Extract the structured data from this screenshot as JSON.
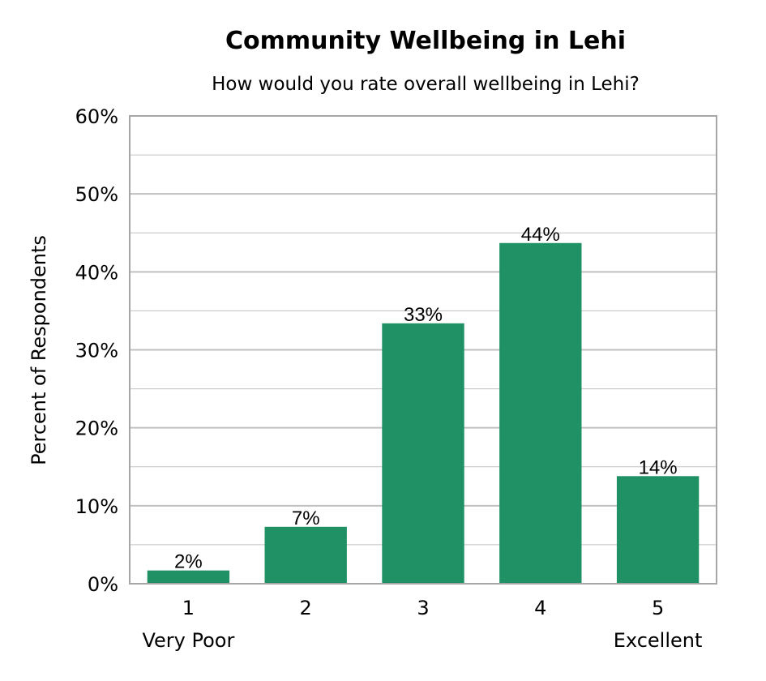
{
  "chart_data": {
    "type": "bar",
    "title": "Community Wellbeing in Lehi",
    "subtitle": "How would you rate overall wellbeing in Lehi?",
    "xlabel": "",
    "ylabel": "Percent of Respondents",
    "categories": [
      "1",
      "2",
      "3",
      "4",
      "5"
    ],
    "category_sublabels": [
      "Very Poor",
      "",
      "",
      "",
      "Excellent"
    ],
    "values": [
      1.7,
      7.3,
      33.4,
      43.7,
      13.8
    ],
    "data_labels": [
      "2%",
      "7%",
      "33%",
      "44%",
      "14%"
    ],
    "ylim": [
      0,
      60
    ],
    "yticks": [
      0,
      10,
      20,
      30,
      40,
      50,
      60
    ],
    "ytick_labels": [
      "0%",
      "10%",
      "20%",
      "30%",
      "40%",
      "50%",
      "60%"
    ],
    "grid": true,
    "legend": "none",
    "colors": {
      "bar": "#1f9165",
      "grid": "#c0c0c0",
      "frame": "#a6a6a6"
    }
  }
}
